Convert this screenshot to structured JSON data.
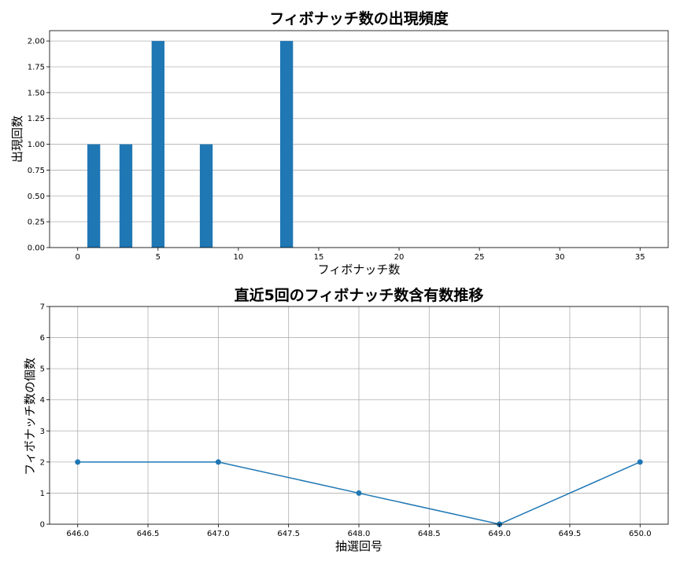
{
  "colors": {
    "series": "#1f77b4",
    "grid": "#b0b0b0"
  },
  "chart_data": [
    {
      "type": "bar",
      "title": "フィボナッチ数の出現頻度",
      "xlabel": "フィボナッチ数",
      "ylabel": "出現回数",
      "x": [
        1,
        3,
        5,
        8,
        13
      ],
      "values": [
        1,
        1,
        2,
        1,
        2
      ],
      "xlim": [
        -1.75,
        36.75
      ],
      "ylim": [
        0,
        2.1
      ],
      "xticks": [
        0,
        5,
        10,
        15,
        20,
        25,
        30,
        35
      ],
      "xtick_labels": [
        "0",
        "5",
        "10",
        "15",
        "20",
        "25",
        "30",
        "35"
      ],
      "yticks": [
        0,
        0.25,
        0.5,
        0.75,
        1.0,
        1.25,
        1.5,
        1.75,
        2.0
      ],
      "ytick_labels": [
        "0.00",
        "0.25",
        "0.50",
        "0.75",
        "1.00",
        "1.25",
        "1.50",
        "1.75",
        "2.00"
      ],
      "grid": "y"
    },
    {
      "type": "line",
      "title": "直近5回のフィボナッチ数含有数推移",
      "xlabel": "抽選回号",
      "ylabel": "フィボナッチ数の個数",
      "x": [
        646,
        647,
        648,
        649,
        650
      ],
      "values": [
        2,
        2,
        1,
        0,
        2
      ],
      "xlim": [
        645.8,
        650.2
      ],
      "ylim": [
        0,
        7
      ],
      "xticks": [
        646.0,
        646.5,
        647.0,
        647.5,
        648.0,
        648.5,
        649.0,
        649.5,
        650.0
      ],
      "xtick_labels": [
        "646.0",
        "646.5",
        "647.0",
        "647.5",
        "648.0",
        "648.5",
        "649.0",
        "649.5",
        "650.0"
      ],
      "yticks": [
        0,
        1,
        2,
        3,
        4,
        5,
        6,
        7
      ],
      "ytick_labels": [
        "0",
        "1",
        "2",
        "3",
        "4",
        "5",
        "6",
        "7"
      ],
      "grid": "both",
      "markers": true
    }
  ]
}
